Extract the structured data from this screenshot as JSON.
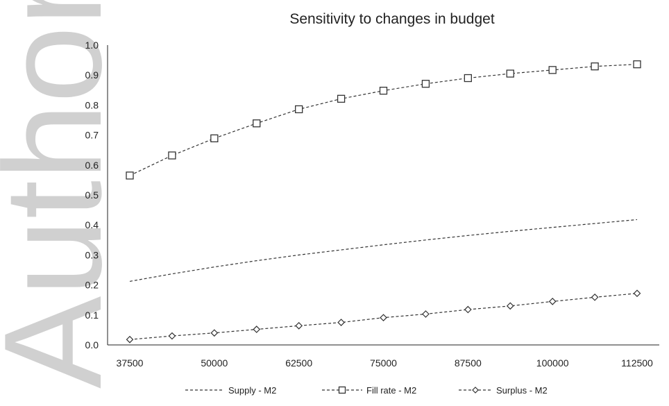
{
  "watermark": {
    "text": "Author Manuscript",
    "color": "#c8c8c8"
  },
  "chart_data": {
    "type": "line",
    "title": "Sensitivity to changes in budget",
    "xlabel": "",
    "ylabel": "",
    "x": [
      37500,
      43750,
      50000,
      56250,
      62500,
      68750,
      75000,
      81250,
      87500,
      93750,
      100000,
      106250,
      112500
    ],
    "x_tick_labels": [
      "37500",
      "50000",
      "62500",
      "75000",
      "87500",
      "100000",
      "112500"
    ],
    "y_tick_labels": [
      "0.0",
      "0.1",
      "0.2",
      "0.3",
      "0.4",
      "0.5",
      "0.6",
      "0.7",
      "0.8",
      "0.9",
      "1.0"
    ],
    "ylim": [
      0,
      1.0
    ],
    "grid": false,
    "legend_position": "bottom",
    "series": [
      {
        "name": "Supply - M2",
        "marker": "none",
        "line_style": "dashed",
        "values": [
          0.212,
          0.237,
          0.26,
          0.281,
          0.3,
          0.317,
          0.334,
          0.35,
          0.365,
          0.379,
          0.392,
          0.405,
          0.418
        ]
      },
      {
        "name": "Fill rate - M2",
        "marker": "square",
        "line_style": "dashed",
        "values": [
          0.565,
          0.632,
          0.689,
          0.739,
          0.786,
          0.821,
          0.848,
          0.871,
          0.89,
          0.905,
          0.917,
          0.929,
          0.936
        ]
      },
      {
        "name": "Surplus - M2",
        "marker": "diamond",
        "line_style": "dashed",
        "values": [
          0.018,
          0.03,
          0.04,
          0.052,
          0.064,
          0.075,
          0.091,
          0.103,
          0.118,
          0.13,
          0.145,
          0.159,
          0.172
        ]
      }
    ],
    "colors": {
      "line": "#333333",
      "axis": "#222222"
    }
  }
}
